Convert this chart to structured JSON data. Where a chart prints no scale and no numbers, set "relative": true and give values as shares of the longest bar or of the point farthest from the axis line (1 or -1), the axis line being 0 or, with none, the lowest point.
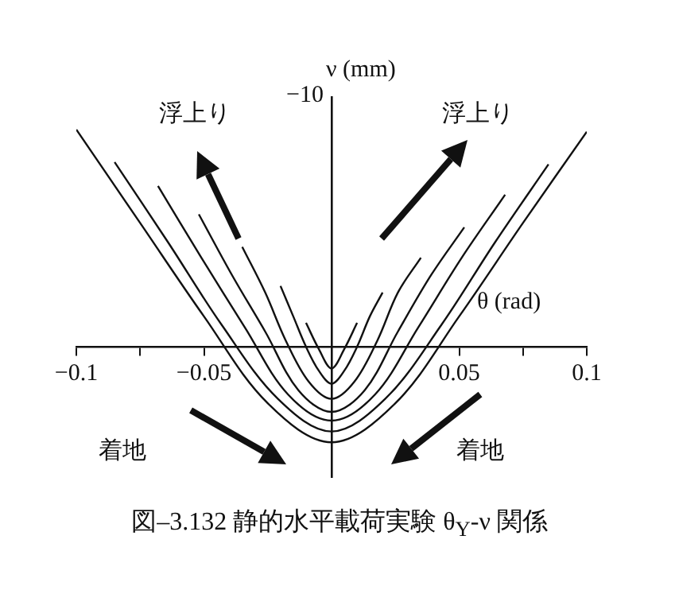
{
  "chart_data": {
    "type": "line",
    "title": "図–3.132 静的水平載荷実験 θ$_{Y}$-ν 関係",
    "xlabel": "θ (rad)",
    "ylabel": "ν (mm)",
    "annotations": [
      "浮上り",
      "浮上り",
      "着地",
      "着地",
      "−10"
    ],
    "relative": true,
    "xlim": [
      -0.1,
      0.1
    ],
    "xticks": [
      {
        "value": -0.1,
        "label": "−0.1"
      },
      {
        "value": -0.075,
        "label": null
      },
      {
        "value": -0.05,
        "label": "−0.05"
      },
      {
        "value": 0.05,
        "label": "0.05"
      },
      {
        "value": 0.075,
        "label": null
      },
      {
        "value": 0.1,
        "label": "0.1"
      }
    ],
    "grid": false,
    "legend": false,
    "marker": "none",
    "line_style": "solid",
    "series": [
      {
        "color": "#111111",
        "x": [
          -0.1,
          -0.075,
          -0.05,
          -0.025,
          0,
          0.025,
          0.05,
          0.075,
          0.1
        ],
        "values": [
          1,
          0.57,
          0.14,
          -0.26,
          -0.44,
          -0.26,
          0.14,
          0.57,
          0.99
        ]
      },
      {
        "color": "#111111",
        "x": [
          -0.085,
          -0.064,
          -0.043,
          -0.021,
          0,
          0.021,
          0.043,
          0.064,
          0.085
        ],
        "values": [
          0.85,
          0.48,
          0.1,
          -0.24,
          -0.39,
          -0.24,
          0.1,
          0.48,
          0.84
        ]
      },
      {
        "color": "#111111",
        "x": [
          -0.068,
          -0.051,
          -0.034,
          -0.017,
          0,
          0.017,
          0.034,
          0.051,
          0.068
        ],
        "values": [
          0.74,
          0.41,
          0.09,
          -0.22,
          -0.34,
          -0.22,
          0.09,
          0.41,
          0.7
        ]
      },
      {
        "color": "#111111",
        "x": [
          -0.052,
          -0.039,
          -0.026,
          -0.013,
          0,
          0.013,
          0.026,
          0.039,
          0.052
        ],
        "values": [
          0.61,
          0.33,
          0.07,
          -0.2,
          -0.3,
          -0.2,
          0.07,
          0.33,
          0.55
        ]
      },
      {
        "color": "#111111",
        "x": [
          -0.035,
          -0.026,
          -0.018,
          -0.009,
          0,
          0.009,
          0.018,
          0.026,
          0.035
        ],
        "values": [
          0.46,
          0.25,
          0.03,
          -0.16,
          -0.24,
          -0.16,
          0.03,
          0.25,
          0.41
        ]
      },
      {
        "color": "#111111",
        "x": [
          -0.02,
          -0.015,
          -0.01,
          -0.005,
          0,
          0.005,
          0.01,
          0.015,
          0.02
        ],
        "values": [
          0.28,
          0.14,
          0,
          -0.11,
          -0.17,
          -0.11,
          0,
          0.14,
          0.25
        ]
      },
      {
        "color": "#111111",
        "x": [
          -0.01,
          -0.005,
          0,
          0.005,
          0.01
        ],
        "values": [
          0.11,
          -0.01,
          -0.1,
          -0.01,
          0.11
        ]
      }
    ]
  }
}
